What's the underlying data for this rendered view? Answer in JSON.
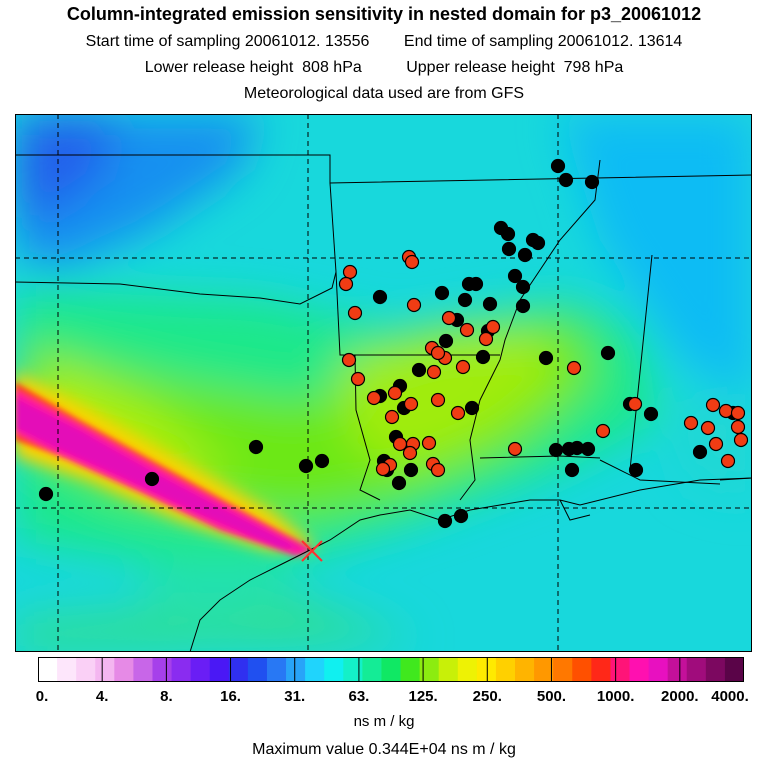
{
  "title": "Column-integrated emission sensitivity in nested domain for p3_20061012",
  "sampling": {
    "start_label": "Start time of sampling",
    "start_value": "20061012. 13556",
    "end_label": "End time of sampling",
    "end_value": "20061012. 13614"
  },
  "release": {
    "lower_label": "Lower release height",
    "lower_value": "808 hPa",
    "upper_label": "Upper release height",
    "upper_value": "798 hPa"
  },
  "met_text": "Meteorological data used are from GFS",
  "colorbar": {
    "colors": [
      "#ffffff",
      "#fde6fb",
      "#fad0f6",
      "#f4b6f0",
      "#e68ae6",
      "#c866e8",
      "#a640ea",
      "#8a2cf0",
      "#6a1ef5",
      "#4a18f5",
      "#3030f0",
      "#2050f0",
      "#2878f4",
      "#28a4f8",
      "#20d4fc",
      "#10f0f0",
      "#14f0c8",
      "#14ec96",
      "#10e864",
      "#40e81e",
      "#8cec10",
      "#c8f008",
      "#eef204",
      "#ffea00",
      "#ffd000",
      "#ffb400",
      "#ff9800",
      "#ff7800",
      "#ff5000",
      "#ff2818",
      "#ff1478",
      "#ff10b0",
      "#e810c0",
      "#c4109a",
      "#a00c7c",
      "#7c0860",
      "#5a0448"
    ],
    "tick_labels": [
      "0.",
      "4.",
      "8.",
      "16.",
      "31.",
      "63.",
      "125.",
      "250.",
      "500.",
      "1000.",
      "2000.",
      "4000."
    ],
    "units": "ns m / kg"
  },
  "max_text": "Maximum value  0.344E+04 ns m / kg",
  "stations": {
    "black": [
      [
        46,
        494
      ],
      [
        152,
        479
      ],
      [
        256,
        447
      ],
      [
        306,
        466
      ],
      [
        322,
        461
      ],
      [
        558,
        166
      ],
      [
        566,
        180
      ],
      [
        592,
        182
      ],
      [
        501,
        228
      ],
      [
        508,
        234
      ],
      [
        509,
        249
      ],
      [
        533,
        240
      ],
      [
        538,
        243
      ],
      [
        525,
        255
      ],
      [
        515,
        276
      ],
      [
        523,
        287
      ],
      [
        523,
        306
      ],
      [
        469,
        284
      ],
      [
        476,
        284
      ],
      [
        442,
        293
      ],
      [
        465,
        300
      ],
      [
        490,
        304
      ],
      [
        380,
        297
      ],
      [
        457,
        320
      ],
      [
        488,
        331
      ],
      [
        446,
        341
      ],
      [
        483,
        357
      ],
      [
        419,
        370
      ],
      [
        400,
        386
      ],
      [
        380,
        396
      ],
      [
        404,
        408
      ],
      [
        472,
        408
      ],
      [
        396,
        437
      ],
      [
        384,
        461
      ],
      [
        387,
        470
      ],
      [
        411,
        470
      ],
      [
        399,
        483
      ],
      [
        445,
        521
      ],
      [
        461,
        516
      ],
      [
        546,
        358
      ],
      [
        608,
        353
      ],
      [
        651,
        414
      ],
      [
        630,
        404
      ],
      [
        569,
        449
      ],
      [
        577,
        448
      ],
      [
        556,
        450
      ],
      [
        572,
        470
      ],
      [
        636,
        470
      ],
      [
        588,
        449
      ],
      [
        700,
        452
      ],
      [
        733,
        413
      ]
    ],
    "red": [
      [
        350,
        272
      ],
      [
        346,
        284
      ],
      [
        409,
        257
      ],
      [
        412,
        262
      ],
      [
        355,
        313
      ],
      [
        414,
        305
      ],
      [
        449,
        318
      ],
      [
        493,
        327
      ],
      [
        467,
        330
      ],
      [
        486,
        339
      ],
      [
        432,
        348
      ],
      [
        445,
        358
      ],
      [
        438,
        353
      ],
      [
        434,
        372
      ],
      [
        463,
        367
      ],
      [
        349,
        360
      ],
      [
        358,
        379
      ],
      [
        374,
        398
      ],
      [
        395,
        393
      ],
      [
        438,
        400
      ],
      [
        458,
        413
      ],
      [
        411,
        404
      ],
      [
        392,
        417
      ],
      [
        400,
        444
      ],
      [
        413,
        444
      ],
      [
        429,
        443
      ],
      [
        410,
        453
      ],
      [
        433,
        464
      ],
      [
        438,
        470
      ],
      [
        390,
        465
      ],
      [
        383,
        469
      ],
      [
        574,
        368
      ],
      [
        515,
        449
      ],
      [
        603,
        431
      ],
      [
        635,
        404
      ],
      [
        691,
        423
      ],
      [
        713,
        405
      ],
      [
        726,
        411
      ],
      [
        738,
        413
      ],
      [
        708,
        428
      ],
      [
        738,
        427
      ],
      [
        741,
        440
      ],
      [
        716,
        444
      ],
      [
        728,
        461
      ]
    ]
  }
}
